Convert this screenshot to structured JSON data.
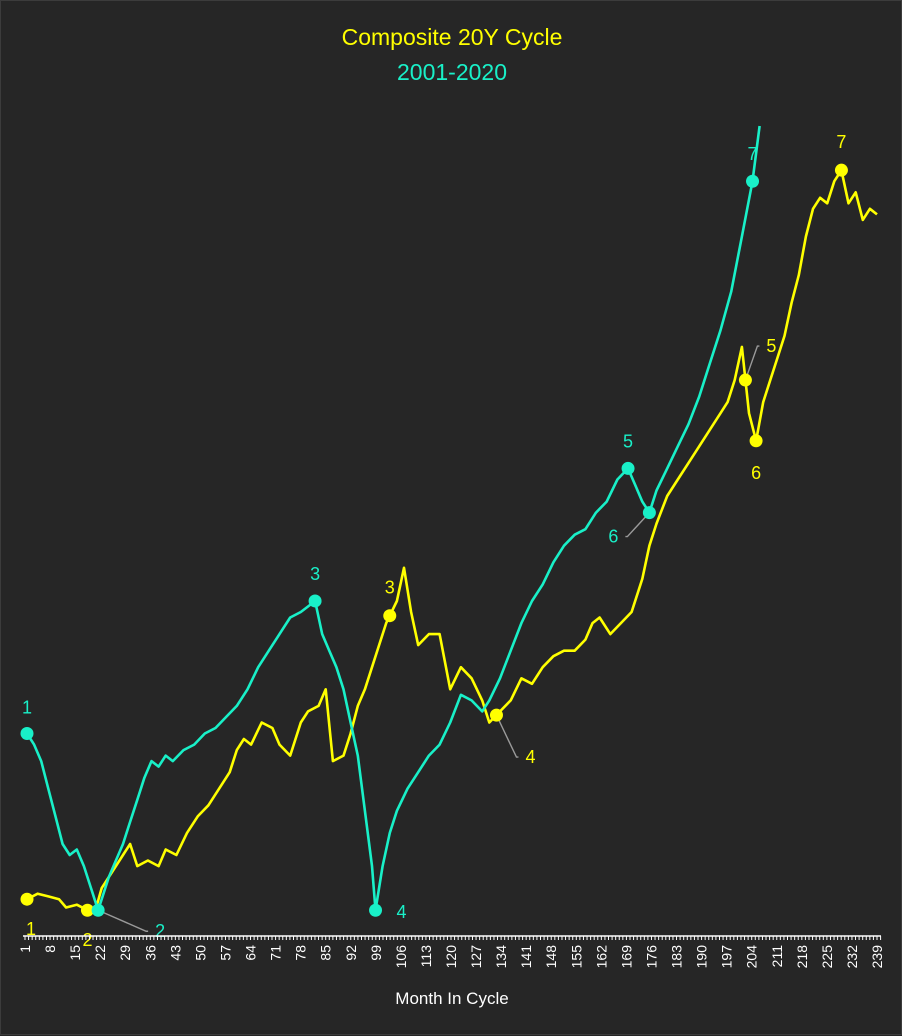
{
  "chart_data": {
    "type": "line",
    "title": "Composite 20Y Cycle",
    "subtitle": "2001-2020",
    "xlabel": "Month In Cycle",
    "ylabel": "",
    "xlim": [
      1,
      240
    ],
    "grid": false,
    "legend": "none",
    "colors": {
      "background": "#262626",
      "title": "#ffff00",
      "subtitle": "#19f0c8",
      "series_a": "#ffff00",
      "series_b": "#19f0c8",
      "axis_text": "#ffffff",
      "leader": "#9a9a9a"
    },
    "x_tick_labels": [
      "1",
      "8",
      "15",
      "22",
      "29",
      "36",
      "43",
      "50",
      "57",
      "64",
      "71",
      "78",
      "85",
      "92",
      "99",
      "106",
      "113",
      "120",
      "127",
      "134",
      "141",
      "148",
      "155",
      "162",
      "169",
      "176",
      "183",
      "190",
      "197",
      "204",
      "211",
      "218",
      "225",
      "232",
      "239"
    ],
    "series": [
      {
        "key": "yellow",
        "points": [
          [
            1,
            10
          ],
          [
            4,
            11
          ],
          [
            7,
            10.5
          ],
          [
            10,
            10
          ],
          [
            12,
            8.5
          ],
          [
            15,
            9
          ],
          [
            18,
            8
          ],
          [
            20,
            7.5
          ],
          [
            22,
            12
          ],
          [
            25,
            15
          ],
          [
            28,
            18
          ],
          [
            30,
            20
          ],
          [
            32,
            16
          ],
          [
            35,
            17
          ],
          [
            38,
            16
          ],
          [
            40,
            19
          ],
          [
            43,
            18
          ],
          [
            46,
            22
          ],
          [
            49,
            25
          ],
          [
            52,
            27
          ],
          [
            55,
            30
          ],
          [
            58,
            33
          ],
          [
            60,
            37
          ],
          [
            62,
            39
          ],
          [
            64,
            38
          ],
          [
            67,
            42
          ],
          [
            70,
            41
          ],
          [
            72,
            38
          ],
          [
            75,
            36
          ],
          [
            78,
            42
          ],
          [
            80,
            44
          ],
          [
            83,
            45
          ],
          [
            85,
            48
          ],
          [
            87,
            35
          ],
          [
            90,
            36
          ],
          [
            92,
            40
          ],
          [
            94,
            45
          ],
          [
            96,
            48
          ],
          [
            98,
            52
          ],
          [
            100,
            56
          ],
          [
            102,
            60
          ],
          [
            105,
            64
          ],
          [
            107,
            70
          ],
          [
            109,
            62
          ],
          [
            111,
            56
          ],
          [
            114,
            58
          ],
          [
            117,
            58
          ],
          [
            120,
            48
          ],
          [
            123,
            52
          ],
          [
            126,
            50
          ],
          [
            129,
            46
          ],
          [
            131,
            42
          ],
          [
            134,
            44
          ],
          [
            137,
            46
          ],
          [
            140,
            50
          ],
          [
            143,
            49
          ],
          [
            146,
            52
          ],
          [
            149,
            54
          ],
          [
            152,
            55
          ],
          [
            155,
            55
          ],
          [
            158,
            57
          ],
          [
            160,
            60
          ],
          [
            162,
            61
          ],
          [
            165,
            58
          ],
          [
            168,
            60
          ],
          [
            171,
            62
          ],
          [
            174,
            68
          ],
          [
            176,
            74
          ],
          [
            178,
            78
          ],
          [
            181,
            83
          ],
          [
            184,
            86
          ],
          [
            187,
            89
          ],
          [
            190,
            92
          ],
          [
            193,
            95
          ],
          [
            196,
            98
          ],
          [
            198,
            100
          ],
          [
            200,
            104
          ],
          [
            202,
            110
          ],
          [
            204,
            98
          ],
          [
            206,
            93
          ],
          [
            208,
            100
          ],
          [
            210,
            104
          ],
          [
            212,
            108
          ],
          [
            214,
            112
          ],
          [
            216,
            118
          ],
          [
            218,
            123
          ],
          [
            220,
            130
          ],
          [
            222,
            135
          ],
          [
            224,
            137
          ],
          [
            226,
            136
          ],
          [
            228,
            140
          ],
          [
            230,
            142
          ],
          [
            232,
            136
          ],
          [
            234,
            138
          ],
          [
            236,
            133
          ],
          [
            238,
            135
          ],
          [
            240,
            134
          ]
        ]
      },
      {
        "key": "cyan",
        "points": [
          [
            1,
            40
          ],
          [
            3,
            38
          ],
          [
            5,
            35
          ],
          [
            7,
            30
          ],
          [
            9,
            25
          ],
          [
            11,
            20
          ],
          [
            13,
            18
          ],
          [
            15,
            19
          ],
          [
            17,
            16
          ],
          [
            19,
            12
          ],
          [
            21,
            8
          ],
          [
            22,
            10
          ],
          [
            24,
            14
          ],
          [
            26,
            17
          ],
          [
            28,
            20
          ],
          [
            30,
            24
          ],
          [
            32,
            28
          ],
          [
            34,
            32
          ],
          [
            36,
            35
          ],
          [
            38,
            34
          ],
          [
            40,
            36
          ],
          [
            42,
            35
          ],
          [
            45,
            37
          ],
          [
            48,
            38
          ],
          [
            51,
            40
          ],
          [
            54,
            41
          ],
          [
            57,
            43
          ],
          [
            60,
            45
          ],
          [
            63,
            48
          ],
          [
            66,
            52
          ],
          [
            69,
            55
          ],
          [
            72,
            58
          ],
          [
            75,
            61
          ],
          [
            78,
            62
          ],
          [
            80,
            63
          ],
          [
            82,
            64
          ],
          [
            84,
            58
          ],
          [
            86,
            55
          ],
          [
            88,
            52
          ],
          [
            90,
            48
          ],
          [
            92,
            42
          ],
          [
            94,
            36
          ],
          [
            96,
            26
          ],
          [
            98,
            16
          ],
          [
            99,
            8
          ],
          [
            101,
            16
          ],
          [
            103,
            22
          ],
          [
            105,
            26
          ],
          [
            108,
            30
          ],
          [
            111,
            33
          ],
          [
            114,
            36
          ],
          [
            117,
            38
          ],
          [
            120,
            42
          ],
          [
            123,
            47
          ],
          [
            126,
            46
          ],
          [
            129,
            44
          ],
          [
            131,
            46
          ],
          [
            134,
            50
          ],
          [
            137,
            55
          ],
          [
            140,
            60
          ],
          [
            143,
            64
          ],
          [
            146,
            67
          ],
          [
            149,
            71
          ],
          [
            152,
            74
          ],
          [
            155,
            76
          ],
          [
            158,
            77
          ],
          [
            161,
            80
          ],
          [
            164,
            82
          ],
          [
            167,
            86
          ],
          [
            170,
            88
          ],
          [
            172,
            85
          ],
          [
            174,
            82
          ],
          [
            176,
            80
          ],
          [
            178,
            84
          ],
          [
            181,
            88
          ],
          [
            184,
            92
          ],
          [
            187,
            96
          ],
          [
            190,
            101
          ],
          [
            193,
            107
          ],
          [
            196,
            113
          ],
          [
            199,
            120
          ],
          [
            202,
            130
          ],
          [
            205,
            140
          ],
          [
            207,
            150
          ]
        ]
      }
    ],
    "annotations": [
      {
        "series": "yellow",
        "x": 1,
        "label": "1"
      },
      {
        "series": "yellow",
        "x": 18,
        "label": "2"
      },
      {
        "series": "yellow",
        "x": 103,
        "label": "3"
      },
      {
        "series": "yellow",
        "x": 133,
        "label": "4"
      },
      {
        "series": "yellow",
        "x": 203,
        "label": "5"
      },
      {
        "series": "yellow",
        "x": 206,
        "label": "6"
      },
      {
        "series": "yellow",
        "x": 230,
        "label": "7"
      },
      {
        "series": "cyan",
        "x": 1,
        "label": "1"
      },
      {
        "series": "cyan",
        "x": 21,
        "label": "2"
      },
      {
        "series": "cyan",
        "x": 82,
        "label": "3"
      },
      {
        "series": "cyan",
        "x": 99,
        "label": "4"
      },
      {
        "series": "cyan",
        "x": 170,
        "label": "5"
      },
      {
        "series": "cyan",
        "x": 176,
        "label": "6"
      },
      {
        "series": "cyan",
        "x": 205,
        "label": "7"
      }
    ]
  }
}
